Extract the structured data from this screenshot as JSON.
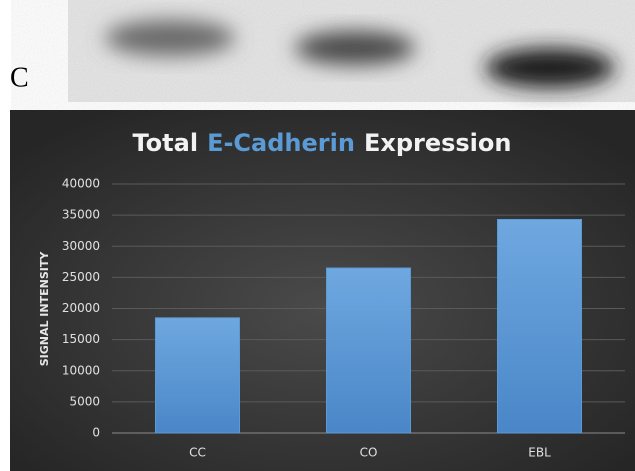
{
  "panel_label": "C",
  "chart_data": {
    "type": "bar",
    "title_segments": [
      {
        "text": "Total",
        "color": "#f2f2f2"
      },
      {
        "text": "E-Cadherin",
        "color": "#5b9bd5"
      },
      {
        "text": "Expression",
        "color": "#f2f2f2"
      }
    ],
    "y_label": "SIGNAL INTENSITY",
    "categories": [
      "CC",
      "CO",
      "EBL"
    ],
    "values": [
      18500,
      26500,
      34300
    ],
    "color": "#5b9bd5",
    "ylim": [
      0,
      40000
    ],
    "yticks": [
      0,
      5000,
      10000,
      15000,
      20000,
      25000,
      30000,
      35000,
      40000
    ],
    "grid": true
  }
}
